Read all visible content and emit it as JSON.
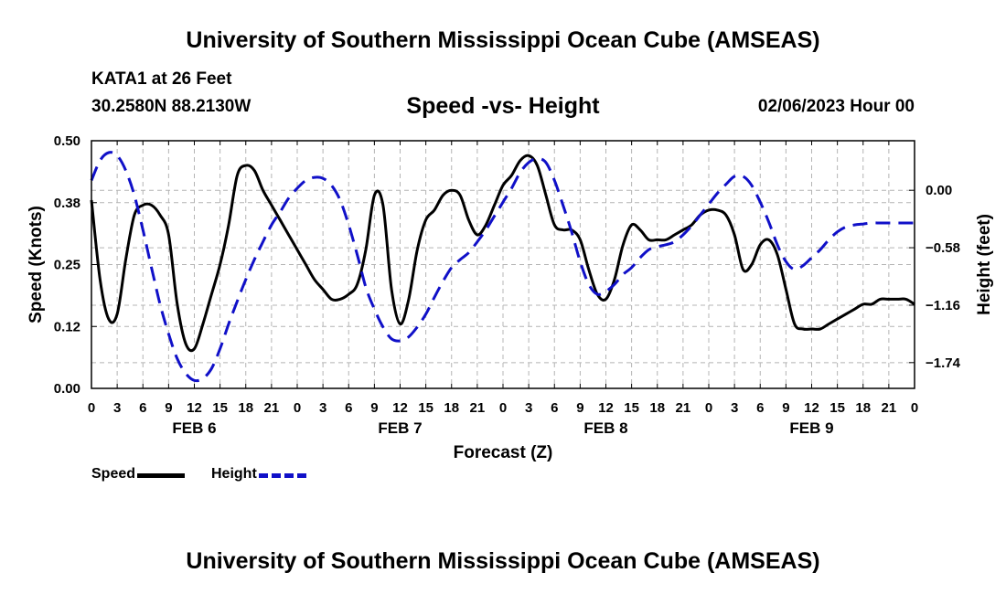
{
  "header": {
    "title": "University of Southern Mississippi Ocean Cube (AMSEAS)",
    "station": "KATA1 at 26 Feet",
    "coords": "30.2580N  88.2130W",
    "subtitle": "Speed -vs- Height",
    "datetime": "02/06/2023 Hour 00"
  },
  "footer": {
    "title": "University of Southern Mississippi Ocean Cube (AMSEAS)"
  },
  "legend": {
    "speed_label": "Speed",
    "height_label": "Height"
  },
  "colors": {
    "speed": "#000000",
    "height": "#1010c8",
    "grid": "#b4b4b4"
  },
  "chart_data": {
    "type": "line",
    "xlabel": "Forecast (Z)",
    "ylabel": "Speed (Knots)",
    "y2label": "Height (feet)",
    "xlim": [
      0,
      96
    ],
    "ylim": [
      0,
      0.5
    ],
    "y2lim": [
      -2.0,
      0.5
    ],
    "x_tick_labels": [
      "0",
      "3",
      "6",
      "9",
      "12",
      "15",
      "18",
      "21",
      "0",
      "3",
      "6",
      "9",
      "12",
      "15",
      "18",
      "21",
      "0",
      "3",
      "6",
      "9",
      "12",
      "15",
      "18",
      "21",
      "0",
      "3",
      "6",
      "9",
      "12",
      "15",
      "18",
      "21",
      "0"
    ],
    "y_ticks": [
      0.0,
      0.125,
      0.25,
      0.375,
      0.5
    ],
    "y_tick_labels": [
      "0.00",
      "0.12",
      "0.25",
      "0.38",
      "0.50"
    ],
    "y2_ticks": [
      -1.74,
      -1.16,
      -0.58,
      0.0
    ],
    "y2_tick_labels": [
      "−1.74",
      "−1.16",
      "−0.58",
      "0.00"
    ],
    "day_labels": [
      {
        "x": 12,
        "label": "FEB 6"
      },
      {
        "x": 36,
        "label": "FEB 7"
      },
      {
        "x": 60,
        "label": "FEB 8"
      },
      {
        "x": 84,
        "label": "FEB 9"
      }
    ],
    "series": [
      {
        "name": "Speed",
        "axis": "left",
        "x": [
          0,
          1,
          2,
          3,
          4,
          5,
          6,
          7,
          8,
          9,
          10,
          11,
          12,
          13,
          14,
          15,
          16,
          17,
          18,
          19,
          20,
          21,
          22,
          23,
          24,
          25,
          26,
          27,
          28,
          29,
          30,
          31,
          32,
          33,
          34,
          35,
          36,
          37,
          38,
          39,
          40,
          41,
          42,
          43,
          44,
          45,
          46,
          47,
          48,
          49,
          50,
          51,
          52,
          53,
          54,
          55,
          56,
          57,
          58,
          59,
          60,
          61,
          62,
          63,
          64,
          65,
          66,
          67,
          68,
          69,
          70,
          71,
          72,
          73,
          74,
          75,
          76,
          77,
          78,
          79,
          80,
          81,
          82,
          83,
          84,
          85,
          86,
          87,
          88,
          89,
          90,
          91,
          92,
          93,
          94,
          95,
          96
        ],
        "values": [
          0.38,
          0.22,
          0.14,
          0.15,
          0.26,
          0.35,
          0.37,
          0.37,
          0.35,
          0.31,
          0.17,
          0.09,
          0.08,
          0.13,
          0.19,
          0.25,
          0.33,
          0.43,
          0.45,
          0.44,
          0.4,
          0.37,
          0.34,
          0.31,
          0.28,
          0.25,
          0.22,
          0.2,
          0.18,
          0.18,
          0.19,
          0.21,
          0.28,
          0.39,
          0.37,
          0.2,
          0.13,
          0.18,
          0.28,
          0.34,
          0.36,
          0.39,
          0.4,
          0.39,
          0.34,
          0.31,
          0.33,
          0.37,
          0.41,
          0.43,
          0.46,
          0.47,
          0.45,
          0.39,
          0.33,
          0.32,
          0.32,
          0.3,
          0.24,
          0.19,
          0.18,
          0.22,
          0.29,
          0.33,
          0.32,
          0.3,
          0.3,
          0.3,
          0.31,
          0.32,
          0.33,
          0.35,
          0.36,
          0.36,
          0.35,
          0.31,
          0.24,
          0.25,
          0.29,
          0.3,
          0.27,
          0.2,
          0.13,
          0.12,
          0.12,
          0.12,
          0.13,
          0.14,
          0.15,
          0.16,
          0.17,
          0.17,
          0.18,
          0.18,
          0.18,
          0.18,
          0.17
        ]
      },
      {
        "name": "Height",
        "axis": "right",
        "x": [
          0,
          1,
          2,
          3,
          4,
          5,
          6,
          7,
          8,
          9,
          10,
          11,
          12,
          13,
          14,
          15,
          16,
          17,
          18,
          19,
          20,
          21,
          22,
          23,
          24,
          25,
          26,
          27,
          28,
          29,
          30,
          31,
          32,
          33,
          34,
          35,
          36,
          37,
          38,
          39,
          40,
          41,
          42,
          43,
          44,
          45,
          46,
          47,
          48,
          49,
          50,
          51,
          52,
          53,
          54,
          55,
          56,
          57,
          58,
          59,
          60,
          61,
          62,
          63,
          64,
          65,
          66,
          67,
          68,
          69,
          70,
          71,
          72,
          73,
          74,
          75,
          76,
          77,
          78,
          79,
          80,
          81,
          82,
          83,
          84,
          85,
          86,
          87,
          88,
          89,
          90,
          91,
          92,
          93,
          94,
          95,
          96
        ],
        "values": [
          0.1,
          0.3,
          0.38,
          0.35,
          0.2,
          -0.05,
          -0.4,
          -0.78,
          -1.15,
          -1.45,
          -1.7,
          -1.85,
          -1.92,
          -1.9,
          -1.8,
          -1.6,
          -1.35,
          -1.12,
          -0.9,
          -0.7,
          -0.52,
          -0.35,
          -0.22,
          -0.08,
          0.02,
          0.1,
          0.13,
          0.12,
          0.05,
          -0.1,
          -0.35,
          -0.65,
          -0.98,
          -1.2,
          -1.38,
          -1.5,
          -1.52,
          -1.48,
          -1.38,
          -1.25,
          -1.08,
          -0.92,
          -0.78,
          -0.7,
          -0.63,
          -0.52,
          -0.4,
          -0.26,
          -0.12,
          0.02,
          0.18,
          0.28,
          0.32,
          0.28,
          0.1,
          -0.15,
          -0.42,
          -0.72,
          -0.95,
          -1.05,
          -1.02,
          -0.95,
          -0.85,
          -0.78,
          -0.68,
          -0.6,
          -0.57,
          -0.55,
          -0.52,
          -0.45,
          -0.36,
          -0.25,
          -0.14,
          -0.03,
          0.06,
          0.14,
          0.14,
          0.05,
          -0.12,
          -0.32,
          -0.55,
          -0.72,
          -0.8,
          -0.76,
          -0.68,
          -0.6,
          -0.5,
          -0.42,
          -0.37,
          -0.35,
          -0.34,
          -0.33,
          -0.33,
          -0.33,
          -0.33,
          -0.33,
          -0.33
        ]
      }
    ]
  }
}
